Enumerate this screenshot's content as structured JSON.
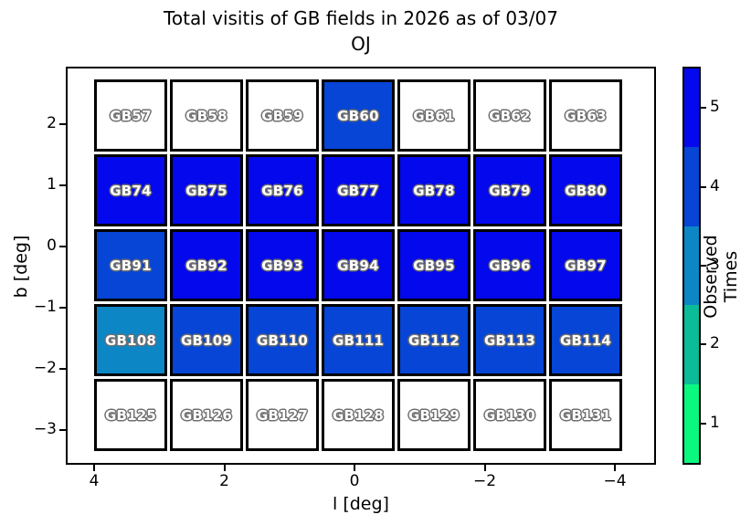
{
  "title": {
    "line1": "Total visitis of GB fields in 2026 as of 03/07",
    "line2": "OJ"
  },
  "axes": {
    "xlabel": "l [deg]",
    "ylabel": "b [deg]",
    "x_tick_labels": [
      "4",
      "2",
      "0",
      "−2",
      "−4"
    ],
    "y_tick_labels": [
      "2",
      "1",
      "0",
      "−1",
      "−2",
      "−3"
    ]
  },
  "colorbar": {
    "label": "Observed Times",
    "tick_labels": [
      "5",
      "4",
      "3",
      "2",
      "1"
    ],
    "segments_top_to_bottom": [
      {
        "value": 5,
        "color": "#0408ec"
      },
      {
        "value": 4,
        "color": "#0645d6"
      },
      {
        "value": 3,
        "color": "#0d86c6"
      },
      {
        "value": 2,
        "color": "#0cbb97"
      },
      {
        "value": 1,
        "color": "#0bf87f"
      }
    ],
    "unobserved_color": "#ffffff"
  },
  "chart_data": {
    "type": "heatmap",
    "title": "Total visitis of GB fields in 2026 as of 03/07 OJ",
    "xlabel": "l [deg]",
    "ylabel": "b [deg]",
    "xlim": [
      4.4,
      -4.6
    ],
    "ylim": [
      -3.5,
      2.85
    ],
    "x_ticks": [
      4,
      2,
      0,
      -2,
      -4
    ],
    "y_ticks": [
      2,
      1,
      0,
      -1,
      -2,
      -3
    ],
    "colorbar_label": "Observed Times",
    "colorbar_levels": [
      1,
      2,
      3,
      4,
      5
    ],
    "l_centers": [
      3.4,
      2.3,
      1.1,
      0,
      -1.1,
      -2.3,
      -3.4
    ],
    "b_row_centers": [
      2.0,
      0.8,
      -0.4,
      -1.6,
      -2.8
    ],
    "rows": [
      {
        "fields": [
          {
            "label": "GB57",
            "visits": 0
          },
          {
            "label": "GB58",
            "visits": 0
          },
          {
            "label": "GB59",
            "visits": 0
          },
          {
            "label": "GB60",
            "visits": 4
          },
          {
            "label": "GB61",
            "visits": 0
          },
          {
            "label": "GB62",
            "visits": 0
          },
          {
            "label": "GB63",
            "visits": 0
          }
        ]
      },
      {
        "fields": [
          {
            "label": "GB74",
            "visits": 5
          },
          {
            "label": "GB75",
            "visits": 5
          },
          {
            "label": "GB76",
            "visits": 5
          },
          {
            "label": "GB77",
            "visits": 5
          },
          {
            "label": "GB78",
            "visits": 5
          },
          {
            "label": "GB79",
            "visits": 5
          },
          {
            "label": "GB80",
            "visits": 5
          }
        ]
      },
      {
        "fields": [
          {
            "label": "GB91",
            "visits": 4
          },
          {
            "label": "GB92",
            "visits": 5
          },
          {
            "label": "GB93",
            "visits": 5
          },
          {
            "label": "GB94",
            "visits": 5
          },
          {
            "label": "GB95",
            "visits": 5
          },
          {
            "label": "GB96",
            "visits": 5
          },
          {
            "label": "GB97",
            "visits": 5
          }
        ]
      },
      {
        "fields": [
          {
            "label": "GB108",
            "visits": 3
          },
          {
            "label": "GB109",
            "visits": 4
          },
          {
            "label": "GB110",
            "visits": 4
          },
          {
            "label": "GB111",
            "visits": 4
          },
          {
            "label": "GB112",
            "visits": 4
          },
          {
            "label": "GB113",
            "visits": 4
          },
          {
            "label": "GB114",
            "visits": 4
          }
        ]
      },
      {
        "fields": [
          {
            "label": "GB125",
            "visits": 0
          },
          {
            "label": "GB126",
            "visits": 0
          },
          {
            "label": "GB127",
            "visits": 0
          },
          {
            "label": "GB128",
            "visits": 0
          },
          {
            "label": "GB129",
            "visits": 0
          },
          {
            "label": "GB130",
            "visits": 0
          },
          {
            "label": "GB131",
            "visits": 0
          }
        ]
      }
    ]
  }
}
